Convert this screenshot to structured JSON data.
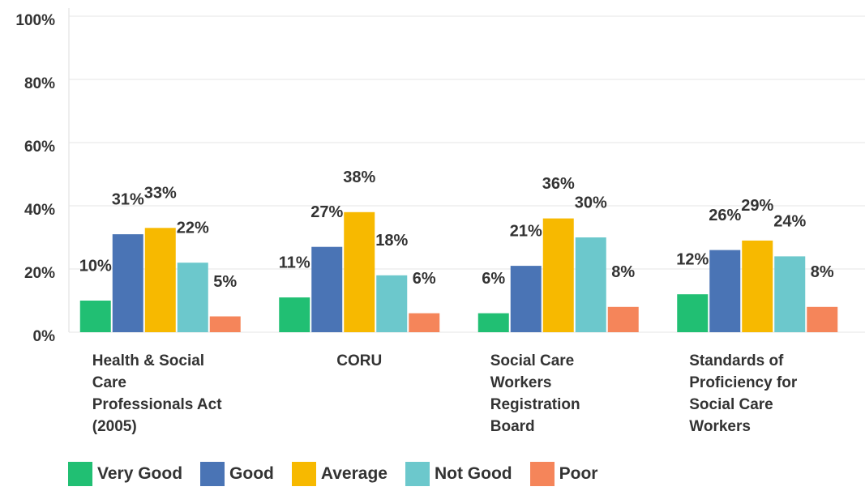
{
  "chart_data": {
    "type": "bar",
    "categories": [
      "Health & Social Care Professionals Act (2005)",
      "CORU",
      "Social Care Workers Registration Board",
      "Standards of Proficiency for Social Care Workers"
    ],
    "series": [
      {
        "name": "Very Good",
        "color": "#21bf73",
        "values": [
          10,
          11,
          6,
          12
        ],
        "value_labels": [
          "10%",
          "11%",
          "6%",
          "12%"
        ]
      },
      {
        "name": "Good",
        "color": "#4a74b5",
        "values": [
          31,
          27,
          21,
          26
        ],
        "value_labels": [
          "31%",
          "27%",
          "21%",
          "26%"
        ]
      },
      {
        "name": "Average",
        "color": "#f7b900",
        "values": [
          33,
          38,
          36,
          29
        ],
        "value_labels": [
          "33%",
          "38%",
          "36%",
          "29%"
        ]
      },
      {
        "name": "Not Good",
        "color": "#6cc8cc",
        "values": [
          22,
          18,
          30,
          24
        ],
        "value_labels": [
          "22%",
          "18%",
          "30%",
          "24%"
        ]
      },
      {
        "name": "Poor",
        "color": "#f5855a",
        "values": [
          5,
          6,
          8,
          8
        ],
        "value_labels": [
          "5%",
          "6%",
          "8%",
          "8%"
        ]
      }
    ],
    "ylim": [
      0,
      100
    ],
    "yticks": [
      {
        "value": 0,
        "label": "0%"
      },
      {
        "value": 20,
        "label": "20%"
      },
      {
        "value": 40,
        "label": "40%"
      },
      {
        "value": 60,
        "label": "60%"
      },
      {
        "value": 80,
        "label": "80%"
      },
      {
        "value": 100,
        "label": "100%"
      }
    ],
    "grid": true,
    "legend": "bottom"
  }
}
